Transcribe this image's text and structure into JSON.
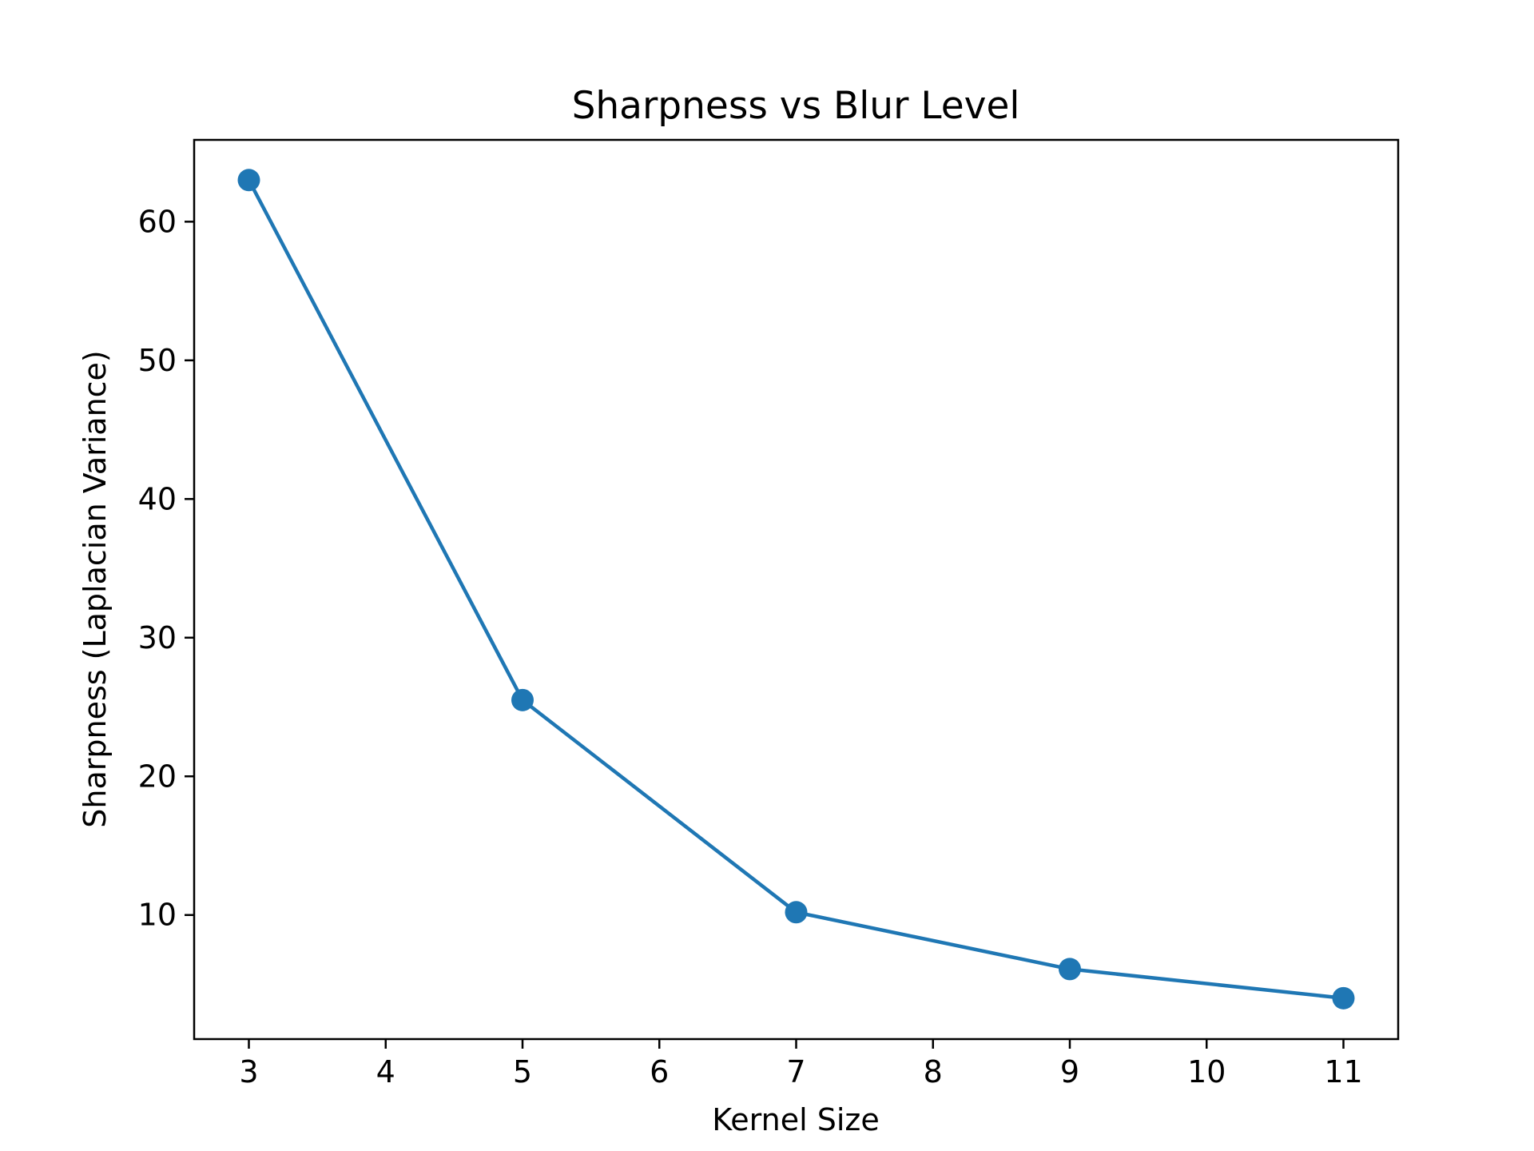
{
  "chart_data": {
    "type": "line",
    "title": "Sharpness vs Blur Level",
    "xlabel": "Kernel Size",
    "ylabel": "Sharpness (Laplacian Variance)",
    "x": [
      3,
      5,
      7,
      9,
      11
    ],
    "series": [
      {
        "values": [
          63.0,
          25.5,
          10.2,
          6.1,
          4.0
        ],
        "color": "#1f77b4"
      }
    ],
    "xlim": [
      2.6,
      11.4
    ],
    "ylim": [
      1.05,
      65.9
    ],
    "xticks": [
      3,
      4,
      5,
      6,
      7,
      8,
      9,
      10,
      11
    ],
    "yticks": [
      10,
      20,
      30,
      40,
      50,
      60
    ],
    "xtick_labels": [
      "3",
      "4",
      "5",
      "6",
      "7",
      "8",
      "9",
      "10",
      "11"
    ],
    "ytick_labels": [
      "10",
      "20",
      "30",
      "40",
      "50",
      "60"
    ],
    "grid": false,
    "legend": "none",
    "marker": "circle"
  }
}
